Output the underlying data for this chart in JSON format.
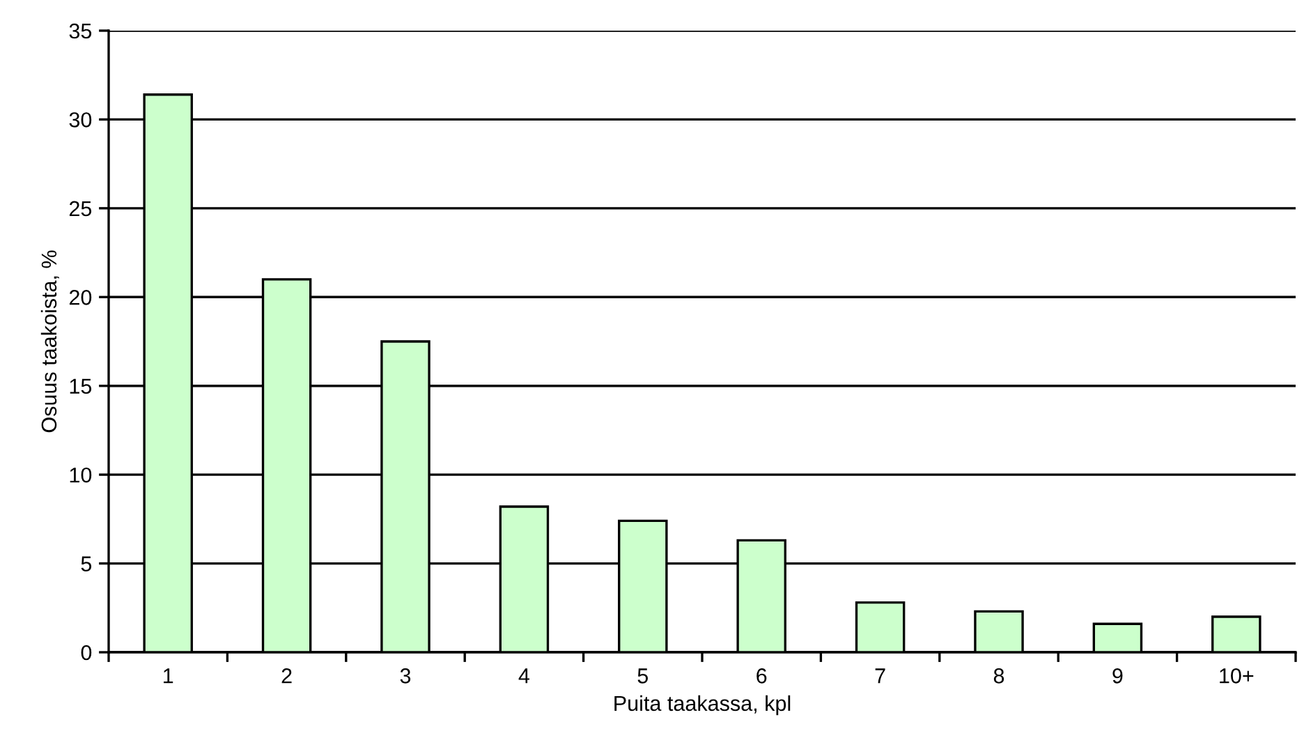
{
  "chart_data": {
    "type": "bar",
    "xlabel": "Puita taakassa, kpl",
    "ylabel": "Osuus taakoista, %",
    "categories": [
      "1",
      "2",
      "3",
      "4",
      "5",
      "6",
      "7",
      "8",
      "9",
      "10+"
    ],
    "values": [
      31.4,
      21.0,
      17.5,
      8.2,
      7.4,
      6.3,
      2.8,
      2.3,
      1.6,
      2.0
    ],
    "color": "#ccffcc",
    "ylim": [
      0,
      35
    ],
    "yticks": [
      0,
      5,
      10,
      15,
      20,
      25,
      30,
      35
    ],
    "grid": "y",
    "legend": false
  }
}
